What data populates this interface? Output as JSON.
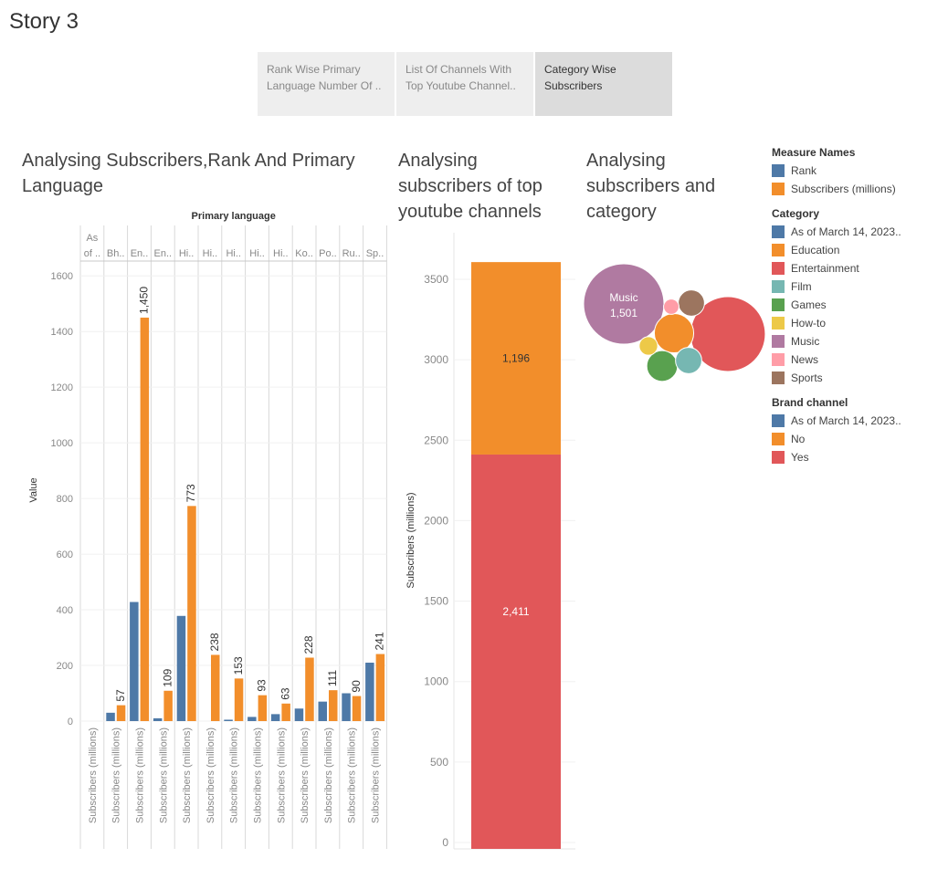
{
  "story_title": "Story 3",
  "tabs": [
    {
      "label": "Rank Wise Primary Language Number Of ..",
      "active": false
    },
    {
      "label": "List Of Channels With Top Youtube Channel..",
      "active": false
    },
    {
      "label": "Category Wise Subscribers",
      "active": true
    }
  ],
  "sheets": {
    "s1_title": "Analysing Subscribers,Rank And Primary Language",
    "s2_title": "Analysing subscribers of top youtube channels",
    "s3_title": "Analysing subscribers and category"
  },
  "colors": {
    "rank": "#4e79a7",
    "subscribers": "#f28e2b",
    "yes": "#e15759",
    "music": "#b07aa1"
  },
  "legends": [
    {
      "title": "Measure Names",
      "items": [
        {
          "label": "Rank",
          "color": "#4e79a7"
        },
        {
          "label": "Subscribers (millions)",
          "color": "#f28e2b"
        }
      ]
    },
    {
      "title": "Category",
      "items": [
        {
          "label": "As of March 14, 2023..",
          "color": "#4e79a7"
        },
        {
          "label": "Education",
          "color": "#f28e2b"
        },
        {
          "label": "Entertainment",
          "color": "#e15759"
        },
        {
          "label": "Film",
          "color": "#76b7b2"
        },
        {
          "label": "Games",
          "color": "#59a14f"
        },
        {
          "label": "How-to",
          "color": "#edc948"
        },
        {
          "label": "Music",
          "color": "#b07aa1"
        },
        {
          "label": "News",
          "color": "#ff9da7"
        },
        {
          "label": "Sports",
          "color": "#9c755f"
        }
      ]
    },
    {
      "title": "Brand channel",
      "items": [
        {
          "label": "As of March 14, 2023..",
          "color": "#4e79a7"
        },
        {
          "label": "No",
          "color": "#f28e2b"
        },
        {
          "label": "Yes",
          "color": "#e15759"
        }
      ]
    }
  ],
  "chart_data": [
    {
      "type": "bar",
      "header_title": "Primary language",
      "categories": [
        "As of ..",
        "Bh..",
        "En..",
        "En..",
        "Hi..",
        "Hi..",
        "Hi..",
        "Hi..",
        "Hi..",
        "Ko..",
        "Po..",
        "Ru..",
        "Sp.."
      ],
      "first_category_lines": [
        "As",
        "of .."
      ],
      "ylabel": "Value",
      "ylim": [
        0,
        1650
      ],
      "yticks": [
        0,
        200,
        400,
        600,
        800,
        1000,
        1200,
        1400,
        1600
      ],
      "x_axis_label": "Subscribers (millions)",
      "series": [
        {
          "name": "Rank",
          "values": [
            0,
            30,
            428,
            10,
            378,
            0,
            5,
            15,
            25,
            45,
            70,
            100,
            210
          ]
        },
        {
          "name": "Subscribers (millions)",
          "values": [
            0,
            57,
            1450,
            109,
            773,
            238,
            153,
            93,
            63,
            228,
            111,
            90,
            241
          ],
          "labels": [
            "",
            "57",
            "1,450",
            "109",
            "773",
            "238",
            "153",
            "93",
            "63",
            "228",
            "111",
            "90",
            "241"
          ]
        }
      ]
    },
    {
      "type": "bar",
      "stacked": true,
      "ylabel": "Subscribers (millions)",
      "ylim": [
        0,
        3700
      ],
      "yticks": [
        0,
        500,
        1000,
        1500,
        2000,
        2500,
        3000,
        3500
      ],
      "series": [
        {
          "name": "Yes",
          "value": 2411,
          "label": "2,411"
        },
        {
          "name": "No",
          "value": 1196,
          "label": "1,196"
        }
      ]
    },
    {
      "type": "bubble",
      "bubbles": [
        {
          "category": "Music",
          "value": 1501,
          "label": "Music",
          "value_label": "1,501"
        },
        {
          "category": "Entertainment",
          "value": 1300
        },
        {
          "category": "Education",
          "value": 360
        },
        {
          "category": "Games",
          "value": 220
        },
        {
          "category": "Film",
          "value": 160
        },
        {
          "category": "Sports",
          "value": 160
        },
        {
          "category": "How-to",
          "value": 80
        },
        {
          "category": "News",
          "value": 55
        }
      ]
    }
  ]
}
